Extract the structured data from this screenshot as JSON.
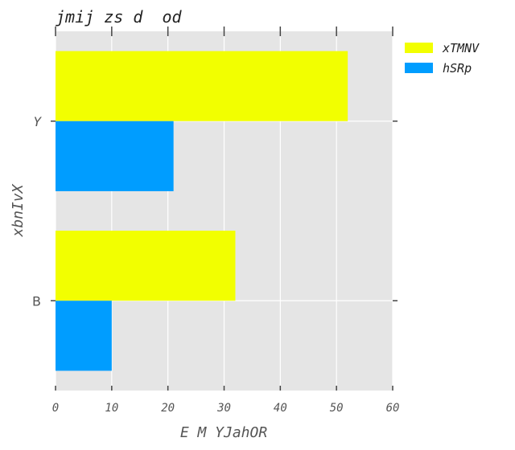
{
  "chart_data": {
    "type": "bar",
    "orientation": "horizontal",
    "title": "jmij zs d  od",
    "xlabel": "E M YJahOR",
    "ylabel": "xbnIvX",
    "categories": [
      "B",
      "Y"
    ],
    "series": [
      {
        "name": "xTMNV",
        "values": [
          32,
          52
        ],
        "color": "#f2ff00"
      },
      {
        "name": "hSRp",
        "values": [
          10,
          21
        ],
        "color": "#009dff"
      }
    ],
    "xlim": [
      0,
      60
    ],
    "xticks": [
      "0",
      "10",
      "20",
      "30",
      "40",
      "50",
      "60"
    ],
    "grid": true,
    "legend": "outside-top-right",
    "background": "#e5e5e5"
  }
}
